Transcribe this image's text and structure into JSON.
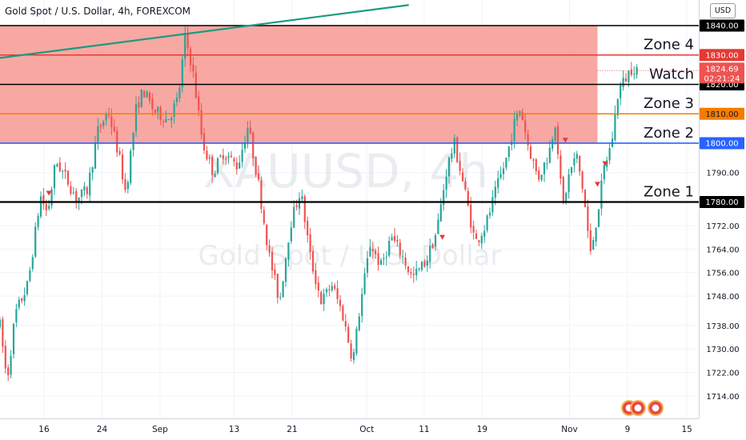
{
  "header": {
    "symbol_title": "Gold Spot / U.S. Dollar, 4h, FOREXCOM",
    "currency": "USD"
  },
  "watermark": {
    "ticker": "XAUUSD, 4h",
    "name": "Gold Spot / U.S. Dollar"
  },
  "colors": {
    "zone_fill": "#f7a19b",
    "zone_line": "#e53935",
    "orange": "#f57c00",
    "blue": "#2962ff",
    "black": "#000000",
    "trend": "#1a9a80",
    "bull": "#26a69a",
    "bear": "#ef5350",
    "marker": "#e53935"
  },
  "chart_data": {
    "type": "candlestick",
    "symbol": "XAUUSD",
    "timeframe": "4h",
    "ylim": [
      1708,
      1847
    ],
    "y_ticks": [
      1714,
      1722,
      1730,
      1738,
      1748,
      1756,
      1764,
      1772,
      1780,
      1790,
      1800,
      1810,
      1820,
      1830,
      1840
    ],
    "y_tick_labels": [
      "1714.00",
      "1722.00",
      "1730.00",
      "1738.00",
      "1748.00",
      "1756.00",
      "1764.00",
      "1772.00",
      "1780.00",
      "1790.00",
      "1800.00",
      "1810.00",
      "1820.00",
      "1830.00",
      "1840.00"
    ],
    "x_ticks": [
      {
        "label": "16",
        "pos": 0.063
      },
      {
        "label": "24",
        "pos": 0.146
      },
      {
        "label": "Sep",
        "pos": 0.229
      },
      {
        "label": "13",
        "pos": 0.335
      },
      {
        "label": "21",
        "pos": 0.418
      },
      {
        "label": "Oct",
        "pos": 0.525
      },
      {
        "label": "11",
        "pos": 0.607
      },
      {
        "label": "19",
        "pos": 0.69
      },
      {
        "label": "Nov",
        "pos": 0.815
      },
      {
        "label": "9",
        "pos": 0.898
      },
      {
        "label": "15",
        "pos": 0.983
      }
    ],
    "price_path": [
      [
        0.0,
        1738
      ],
      [
        0.01,
        1719
      ],
      [
        0.022,
        1742
      ],
      [
        0.04,
        1752
      ],
      [
        0.058,
        1782
      ],
      [
        0.068,
        1776
      ],
      [
        0.08,
        1794
      ],
      [
        0.095,
        1788
      ],
      [
        0.11,
        1781
      ],
      [
        0.125,
        1784
      ],
      [
        0.14,
        1804
      ],
      [
        0.155,
        1811
      ],
      [
        0.17,
        1796
      ],
      [
        0.18,
        1783
      ],
      [
        0.195,
        1812
      ],
      [
        0.205,
        1818
      ],
      [
        0.22,
        1811
      ],
      [
        0.24,
        1808
      ],
      [
        0.255,
        1815
      ],
      [
        0.265,
        1836
      ],
      [
        0.275,
        1826
      ],
      [
        0.29,
        1800
      ],
      [
        0.305,
        1790
      ],
      [
        0.32,
        1797
      ],
      [
        0.34,
        1792
      ],
      [
        0.355,
        1806
      ],
      [
        0.37,
        1786
      ],
      [
        0.385,
        1762
      ],
      [
        0.4,
        1746
      ],
      [
        0.415,
        1772
      ],
      [
        0.43,
        1784
      ],
      [
        0.445,
        1760
      ],
      [
        0.46,
        1746
      ],
      [
        0.475,
        1752
      ],
      [
        0.49,
        1742
      ],
      [
        0.505,
        1726
      ],
      [
        0.515,
        1744
      ],
      [
        0.53,
        1766
      ],
      [
        0.545,
        1758
      ],
      [
        0.56,
        1768
      ],
      [
        0.575,
        1762
      ],
      [
        0.59,
        1754
      ],
      [
        0.61,
        1760
      ],
      [
        0.625,
        1770
      ],
      [
        0.64,
        1792
      ],
      [
        0.65,
        1800
      ],
      [
        0.665,
        1784
      ],
      [
        0.68,
        1766
      ],
      [
        0.695,
        1772
      ],
      [
        0.71,
        1784
      ],
      [
        0.725,
        1795
      ],
      [
        0.735,
        1806
      ],
      [
        0.745,
        1812
      ],
      [
        0.755,
        1800
      ],
      [
        0.77,
        1788
      ],
      [
        0.785,
        1796
      ],
      [
        0.795,
        1808
      ],
      [
        0.805,
        1778
      ],
      [
        0.815,
        1790
      ],
      [
        0.825,
        1796
      ],
      [
        0.835,
        1783
      ],
      [
        0.845,
        1762
      ],
      [
        0.855,
        1776
      ],
      [
        0.865,
        1792
      ],
      [
        0.875,
        1800
      ],
      [
        0.885,
        1818
      ],
      [
        0.895,
        1822
      ],
      [
        0.905,
        1826
      ],
      [
        0.915,
        1825
      ]
    ],
    "zones": [
      {
        "label": "Zone 4",
        "price": 1830,
        "tag": "1830.00",
        "color": "#e53935"
      },
      {
        "label": "Watch",
        "price": 1820,
        "tag": "1820.00",
        "color": "#000000"
      },
      {
        "label": "Zone 3",
        "price": 1810,
        "tag": "1810.00",
        "color": "#f57c00"
      },
      {
        "label": "Zone 2",
        "price": 1800,
        "tag": "1800.00",
        "color": "#2962ff"
      },
      {
        "label": "Zone 1",
        "price": 1780,
        "tag": "1780.00",
        "color": "#000000"
      }
    ],
    "top_line": {
      "price": 1840,
      "tag": "1840.00"
    },
    "shaded_range": {
      "from": 1800,
      "to": 1840,
      "end_pos": 0.855
    },
    "trendline": {
      "start": [
        0.0,
        1829
      ],
      "end": [
        0.585,
        1847
      ]
    },
    "current": {
      "price": 1824.69,
      "tag": "1824.69",
      "countdown": "02:21:24"
    },
    "signal_markers": [
      {
        "pos": 0.07,
        "price": 1783
      },
      {
        "pos": 0.633,
        "price": 1768
      },
      {
        "pos": 0.809,
        "price": 1801
      },
      {
        "pos": 0.855,
        "price": 1786
      },
      {
        "pos": 0.866,
        "price": 1793
      }
    ]
  }
}
